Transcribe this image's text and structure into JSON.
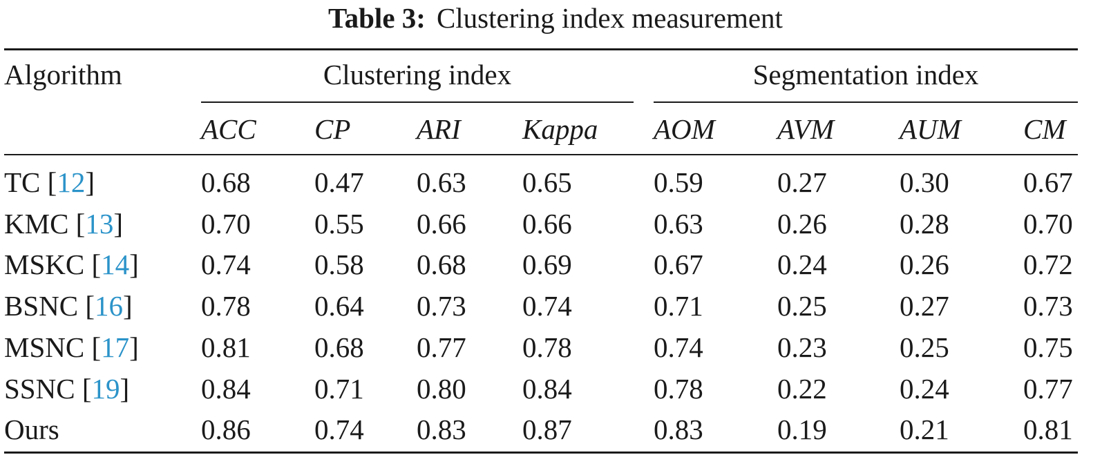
{
  "caption": {
    "label": "Table 3:",
    "text": "Clustering index measurement"
  },
  "header": {
    "algorithm": "Algorithm",
    "group_clustering": "Clustering index",
    "group_segmentation": "Segmentation index",
    "columns": [
      "ACC",
      "CP",
      "ARI",
      "Kappa",
      "AOM",
      "AVM",
      "AUM",
      "CM"
    ]
  },
  "rows": [
    {
      "name": "TC",
      "ref": "12",
      "values": [
        "0.68",
        "0.47",
        "0.63",
        "0.65",
        "0.59",
        "0.27",
        "0.30",
        "0.67"
      ]
    },
    {
      "name": "KMC",
      "ref": "13",
      "values": [
        "0.70",
        "0.55",
        "0.66",
        "0.66",
        "0.63",
        "0.26",
        "0.28",
        "0.70"
      ]
    },
    {
      "name": "MSKC",
      "ref": "14",
      "values": [
        "0.74",
        "0.58",
        "0.68",
        "0.69",
        "0.67",
        "0.24",
        "0.26",
        "0.72"
      ]
    },
    {
      "name": "BSNC",
      "ref": "16",
      "values": [
        "0.78",
        "0.64",
        "0.73",
        "0.74",
        "0.71",
        "0.25",
        "0.27",
        "0.73"
      ]
    },
    {
      "name": "MSNC",
      "ref": "17",
      "values": [
        "0.81",
        "0.68",
        "0.77",
        "0.78",
        "0.74",
        "0.23",
        "0.25",
        "0.75"
      ]
    },
    {
      "name": "SSNC",
      "ref": "19",
      "values": [
        "0.84",
        "0.71",
        "0.80",
        "0.84",
        "0.78",
        "0.22",
        "0.24",
        "0.77"
      ]
    },
    {
      "name": "Ours",
      "ref": "",
      "values": [
        "0.86",
        "0.74",
        "0.83",
        "0.87",
        "0.83",
        "0.19",
        "0.21",
        "0.81"
      ]
    }
  ]
}
